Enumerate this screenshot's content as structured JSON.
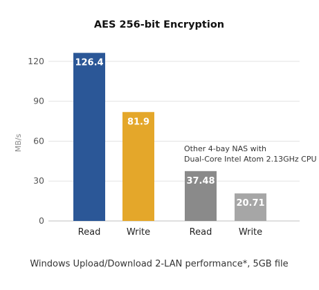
{
  "chart_data": {
    "type": "bar",
    "title": "AES 256-bit Encryption",
    "caption": "Windows Upload/Download 2-LAN performance*, 5GB file",
    "ylabel": "MB/s",
    "xlabel": "",
    "ylim": [
      0,
      135
    ],
    "yticks": [
      0,
      30,
      60,
      90,
      120
    ],
    "grid": true,
    "categories": [
      "Read",
      "Write",
      "Read",
      "Write"
    ],
    "values": [
      126.4,
      81.9,
      37.48,
      20.71
    ],
    "value_labels": [
      "126.4",
      "81.9",
      "37.48",
      "20.71"
    ],
    "colors": [
      "#2b5797",
      "#e4a72a",
      "#8a8a8a",
      "#a6a6a6"
    ],
    "annotation": [
      "Other 4-bay NAS with",
      "Dual-Core Intel Atom 2.13GHz CPU"
    ]
  }
}
